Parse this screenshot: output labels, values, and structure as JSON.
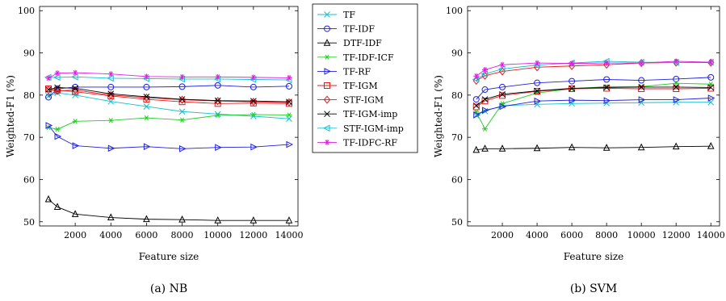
{
  "chart_data": [
    {
      "type": "line",
      "caption": "(a) NB",
      "xlabel": "Feature size",
      "ylabel": "Weighted-F1 (%)",
      "xlim": [
        0,
        14500
      ],
      "ylim": [
        49,
        101
      ],
      "xticks": [
        2000,
        4000,
        6000,
        8000,
        10000,
        12000,
        14000
      ],
      "yticks": [
        50,
        60,
        70,
        80,
        90,
        100
      ],
      "x": [
        500,
        1000,
        2000,
        4000,
        6000,
        8000,
        10000,
        12000,
        14000
      ],
      "series": [
        {
          "name": "TF",
          "color": "#17becf",
          "marker": "x",
          "values": [
            79.8,
            80.5,
            80.0,
            78.5,
            77.3,
            76.1,
            75.5,
            75.0,
            74.4
          ]
        },
        {
          "name": "TF-IDF",
          "color": "#1f1fe0",
          "marker": "circle",
          "values": [
            79.5,
            81.5,
            81.9,
            81.9,
            81.9,
            82.0,
            82.3,
            81.9,
            82.1
          ]
        },
        {
          "name": "DTF-IDF",
          "color": "#000000",
          "marker": "triangle-up",
          "values": [
            55.3,
            53.5,
            51.8,
            51.0,
            50.6,
            50.5,
            50.3,
            50.3,
            50.3
          ]
        },
        {
          "name": "TF-IDF-ICF",
          "color": "#22cc22",
          "marker": "star",
          "values": [
            72.3,
            71.9,
            73.8,
            74.0,
            74.6,
            74.1,
            75.2,
            75.4,
            75.3
          ]
        },
        {
          "name": "TF-RF",
          "color": "#1f1fe0",
          "marker": "triangle-right",
          "values": [
            72.8,
            70.2,
            68.0,
            67.4,
            67.8,
            67.3,
            67.6,
            67.7,
            68.3
          ]
        },
        {
          "name": "TF-IGM",
          "color": "#e41a1c",
          "marker": "square",
          "values": [
            81.5,
            81.2,
            80.8,
            79.8,
            79.0,
            78.4,
            78.0,
            78.1,
            78.0
          ]
        },
        {
          "name": "STF-IGM",
          "color": "#e41a1c",
          "marker": "diamond",
          "values": [
            81.2,
            81.0,
            81.2,
            80.0,
            79.4,
            78.9,
            78.6,
            78.4,
            78.3
          ]
        },
        {
          "name": "TF-IGM-imp",
          "color": "#000000",
          "marker": "x",
          "values": [
            81.3,
            81.8,
            81.6,
            80.3,
            79.6,
            79.0,
            78.7,
            78.6,
            78.4
          ]
        },
        {
          "name": "STF-IGM-imp",
          "color": "#17becf",
          "marker": "triangle-left",
          "values": [
            84.2,
            84.2,
            84.3,
            84.0,
            83.9,
            83.8,
            83.8,
            83.7,
            83.6
          ]
        },
        {
          "name": "TF-IDFC-RF",
          "color": "#e020e0",
          "marker": "asterisk",
          "values": [
            84.0,
            85.2,
            85.3,
            85.0,
            84.4,
            84.3,
            84.3,
            84.2,
            84.1
          ]
        }
      ]
    },
    {
      "type": "line",
      "caption": "(b) SVM",
      "xlabel": "Feature size",
      "ylabel": "Weighted-F1 (%)",
      "xlim": [
        0,
        14500
      ],
      "ylim": [
        49,
        101
      ],
      "xticks": [
        2000,
        4000,
        6000,
        8000,
        10000,
        12000,
        14000
      ],
      "yticks": [
        50,
        60,
        70,
        80,
        90,
        100
      ],
      "x": [
        500,
        1000,
        2000,
        4000,
        6000,
        8000,
        10000,
        12000,
        14000
      ],
      "series": [
        {
          "name": "TF",
          "color": "#17becf",
          "marker": "x",
          "values": [
            75.2,
            76.2,
            77.5,
            77.8,
            78.0,
            78.1,
            78.2,
            78.3,
            78.3
          ]
        },
        {
          "name": "TF-IDF",
          "color": "#1f1fe0",
          "marker": "circle",
          "values": [
            79.0,
            81.3,
            81.9,
            82.9,
            83.3,
            83.7,
            83.5,
            83.8,
            84.2
          ]
        },
        {
          "name": "DTF-IDF",
          "color": "#000000",
          "marker": "triangle-up",
          "values": [
            67.0,
            67.3,
            67.3,
            67.4,
            67.6,
            67.5,
            67.6,
            67.8,
            67.9
          ]
        },
        {
          "name": "TF-IDF-ICF",
          "color": "#22cc22",
          "marker": "star",
          "values": [
            76.0,
            72.0,
            78.0,
            80.5,
            81.5,
            82.0,
            82.0,
            82.8,
            82.6
          ]
        },
        {
          "name": "TF-RF",
          "color": "#1f1fe0",
          "marker": "triangle-right",
          "values": [
            75.3,
            76.4,
            77.3,
            78.6,
            78.8,
            78.7,
            78.9,
            78.9,
            79.3
          ]
        },
        {
          "name": "TF-IGM",
          "color": "#e41a1c",
          "marker": "square",
          "values": [
            77.2,
            78.6,
            79.9,
            80.9,
            81.5,
            81.6,
            81.5,
            81.5,
            81.6
          ]
        },
        {
          "name": "STF-IGM",
          "color": "#e41a1c",
          "marker": "diamond",
          "values": [
            83.4,
            84.6,
            85.6,
            86.6,
            86.9,
            87.2,
            87.6,
            87.7,
            87.7
          ]
        },
        {
          "name": "TF-IGM-imp",
          "color": "#000000",
          "marker": "x",
          "values": [
            77.5,
            79.0,
            80.2,
            81.0,
            81.6,
            81.8,
            81.9,
            81.9,
            81.8
          ]
        },
        {
          "name": "STF-IGM-imp",
          "color": "#17becf",
          "marker": "triangle-left",
          "values": [
            83.7,
            85.0,
            86.2,
            87.1,
            87.6,
            88.0,
            87.8,
            87.7,
            87.8
          ]
        },
        {
          "name": "TF-IDFC-RF",
          "color": "#e020e0",
          "marker": "asterisk",
          "values": [
            84.5,
            86.0,
            87.2,
            87.6,
            87.5,
            87.6,
            87.6,
            88.0,
            87.8
          ]
        }
      ]
    }
  ],
  "legend": {
    "placement": "center"
  }
}
